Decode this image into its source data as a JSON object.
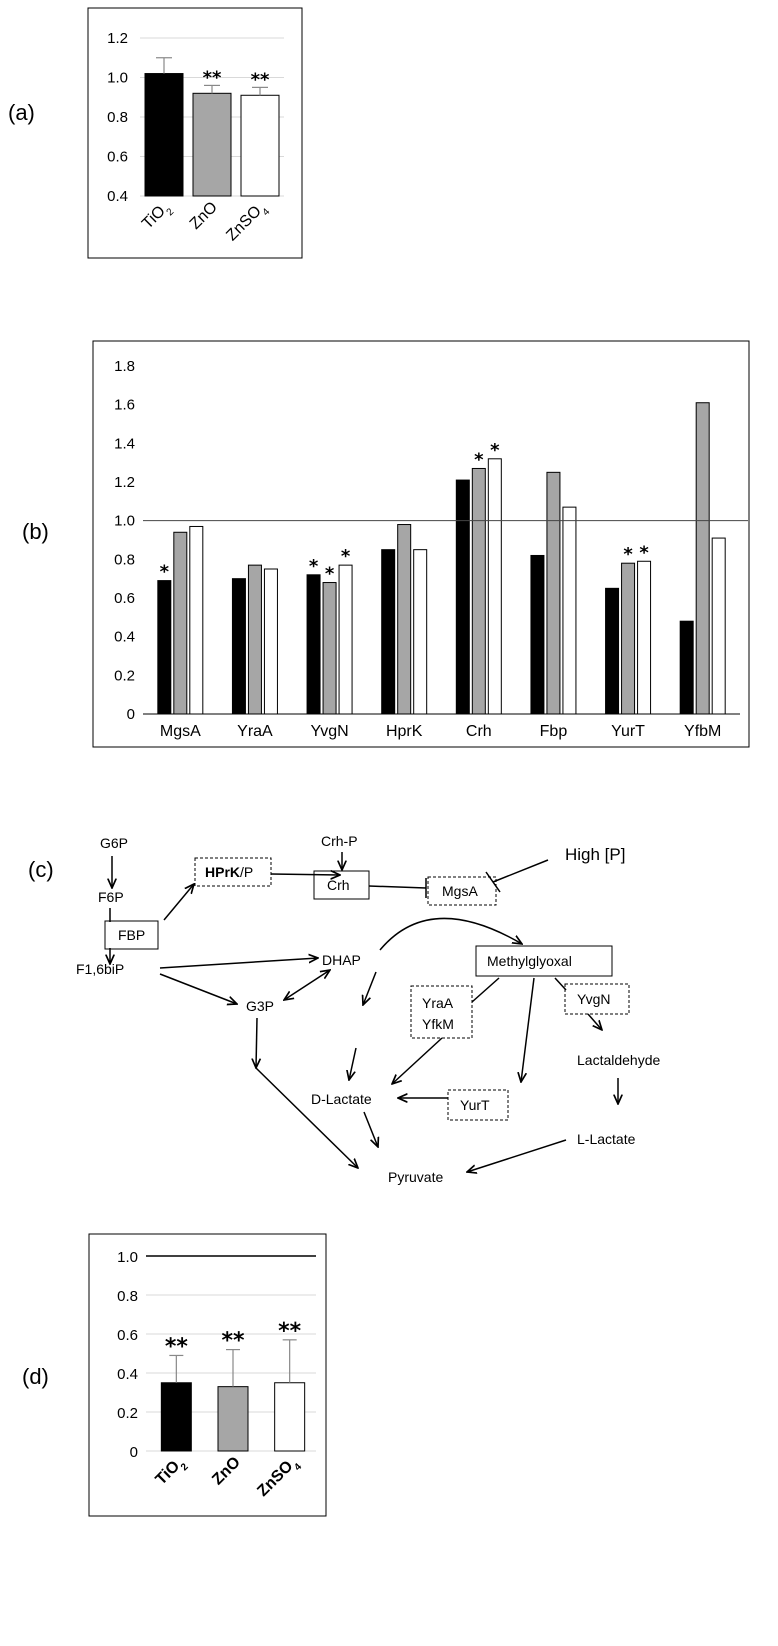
{
  "panels": {
    "a": "(a)",
    "b": "(b)",
    "c": "(c)",
    "d": "(d)"
  },
  "colors": {
    "TiO2": "#000000",
    "ZnO": "#a6a6a6",
    "ZnSO4": "#ffffff",
    "outline": "#000000",
    "grid": "#d9d9d9"
  },
  "chart_data": [
    {
      "id": "a",
      "type": "bar",
      "categories": [
        "TiO2",
        "ZnO",
        "ZnSO4"
      ],
      "category_sub": [
        [
          "Ti",
          "O",
          "2"
        ],
        [
          "ZnO",
          "",
          ""
        ],
        [
          "ZnSO",
          "4",
          ""
        ]
      ],
      "values": [
        1.02,
        0.92,
        0.91
      ],
      "errors": [
        0.08,
        0.04,
        0.04
      ],
      "significance": [
        "",
        "**",
        "**"
      ],
      "ylim": [
        0.4,
        1.2
      ],
      "yticks": [
        "0.4",
        "0.6",
        "0.8",
        "1.0",
        "1.2"
      ],
      "grid": true
    },
    {
      "id": "b",
      "type": "bar",
      "categories": [
        "MgsA",
        "YraA",
        "YvgN",
        "HprK",
        "Crh",
        "Fbp",
        "YurT",
        "YfbM"
      ],
      "series": [
        {
          "values": [
            0.69,
            0.7,
            0.72,
            0.85,
            1.21,
            0.82,
            0.65,
            0.48
          ],
          "significance": [
            "*",
            "",
            "*",
            "",
            "",
            "",
            "",
            ""
          ]
        },
        {
          "values": [
            0.94,
            0.77,
            0.68,
            0.98,
            1.27,
            1.25,
            0.78,
            1.61
          ],
          "significance": [
            "",
            "",
            "*",
            "",
            "*",
            "",
            "*",
            ""
          ]
        },
        {
          "values": [
            0.97,
            0.75,
            0.77,
            0.85,
            1.32,
            1.07,
            0.79,
            0.91
          ],
          "significance": [
            "",
            "",
            "*",
            "",
            "*",
            "",
            "*",
            ""
          ]
        }
      ],
      "ylim": [
        0,
        1.8
      ],
      "yticks": [
        "0",
        "0.2",
        "0.4",
        "0.6",
        "0.8",
        "1.0",
        "1.2",
        "1.4",
        "1.6",
        "1.8"
      ],
      "reference_line": 1.0,
      "grid": false
    },
    {
      "id": "d",
      "type": "bar",
      "categories": [
        "TiO2",
        "ZnO",
        "ZnSO4"
      ],
      "values": [
        0.35,
        0.33,
        0.35
      ],
      "errors": [
        0.14,
        0.19,
        0.22
      ],
      "significance": [
        "**",
        "**",
        "**"
      ],
      "ylim": [
        0,
        1.0
      ],
      "yticks": [
        "0",
        "0.2",
        "0.4",
        "0.6",
        "0.8",
        "1.0"
      ],
      "reference_line": 1.0,
      "grid": true
    }
  ],
  "diagram": {
    "G6P": "G6P",
    "F6P": "F6P",
    "FBP": "FBP",
    "F16biP": "F1,6biP",
    "HPrK_bold": "HPrK",
    "HPrK_rest": "/P",
    "CrhP": "Crh-P",
    "Crh": "Crh",
    "HighP": "High [P]",
    "MgsA": "MgsA",
    "DHAP": "DHAP",
    "Methylglyoxal": "Methylglyoxal",
    "G3P": "G3P",
    "YraA": "YraA",
    "YfkM": "YfkM",
    "YvgN": "YvgN",
    "Lactaldehyde": "Lactaldehyde",
    "DLactate": "D-Lactate",
    "YurT": "YurT",
    "LLactate": "L-Lactate",
    "Pyruvate": "Pyruvate"
  }
}
